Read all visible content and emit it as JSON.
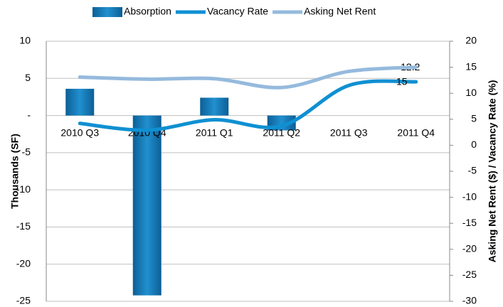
{
  "chart_data": {
    "type": "bar-line",
    "categories": [
      "2010 Q3",
      "2010 Q4",
      "2011 Q1",
      "2011 Q2",
      "2011 Q3",
      "2011 Q4"
    ],
    "series": [
      {
        "name": "Absorption",
        "type": "bar",
        "color": "#1a78b8",
        "values": [
          3.6,
          -24.2,
          2.4,
          -2.0,
          null,
          null
        ]
      },
      {
        "name": "Vacancy Rate",
        "type": "line",
        "axis": "y2",
        "color": "#0f90d2",
        "values": [
          4.2,
          2.9,
          4.9,
          3.7,
          11.5,
          12.2
        ],
        "data_labels": "last"
      },
      {
        "name": "Asking Net Rent",
        "type": "line",
        "axis": "y2",
        "color": "#95badd",
        "values": [
          13.1,
          12.7,
          12.8,
          11.1,
          14.2,
          15
        ],
        "data_labels": "last"
      }
    ],
    "ylabel": "Thousands (SF)",
    "y2label": "Asking Net Rent ($) / Vacancy Rate (%)",
    "ylim": [
      -25,
      10
    ],
    "yticks": [
      -25,
      -20,
      -15,
      -10,
      -5,
      {
        "value": 0,
        "label": "-"
      },
      5,
      10
    ],
    "y2lim": [
      -30,
      20
    ],
    "y2ticks": [
      -30,
      -25,
      -20,
      -15,
      -10,
      -5,
      0,
      5,
      10,
      15,
      20
    ],
    "grid": true,
    "legend": "top"
  }
}
